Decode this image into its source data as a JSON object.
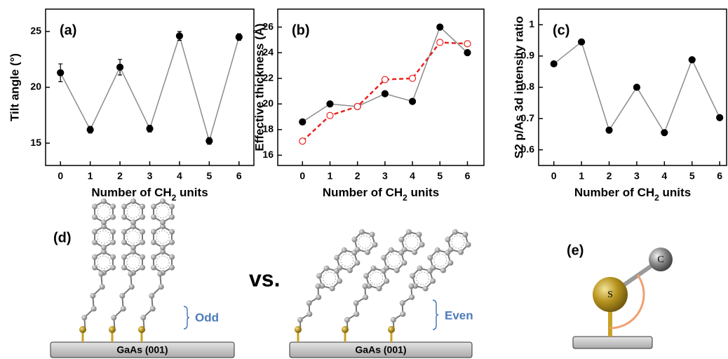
{
  "chart_data": [
    {
      "type": "line",
      "panel_label": "(a)",
      "xlabel": [
        "Number of CH",
        "2",
        " units"
      ],
      "ylabel": "Tilt angle (°)",
      "x": [
        0,
        1,
        2,
        3,
        4,
        5,
        6
      ],
      "xlim": [
        -0.5,
        6.5
      ],
      "xticks": [
        0,
        1,
        2,
        3,
        4,
        5,
        6
      ],
      "ylim": [
        13,
        27
      ],
      "yticks": [
        15,
        20,
        25
      ],
      "series": [
        {
          "color": "#000000",
          "line_color": "#8c8c8c",
          "marker": "filled",
          "linestyle": "solid",
          "values": [
            21.3,
            16.2,
            21.8,
            16.3,
            24.6,
            15.2,
            24.5
          ],
          "errors": [
            0.8,
            0.3,
            0.7,
            0.3,
            0.4,
            0.3,
            0.3
          ]
        }
      ]
    },
    {
      "type": "line",
      "panel_label": "(b)",
      "xlabel": [
        "Number of CH",
        "2",
        " units"
      ],
      "ylabel": "Effective thickness (Å)",
      "x": [
        0,
        1,
        2,
        3,
        4,
        5,
        6
      ],
      "xlim": [
        -0.9,
        6.6
      ],
      "xticks": [
        0,
        1,
        2,
        3,
        4,
        5,
        6
      ],
      "ylim": [
        15.2,
        27.4
      ],
      "yticks": [
        16,
        18,
        20,
        22,
        24,
        26
      ],
      "series": [
        {
          "color": "#000000",
          "line_color": "#8c8c8c",
          "marker": "filled",
          "linestyle": "solid",
          "values": [
            18.6,
            20.0,
            19.8,
            20.8,
            20.2,
            26.0,
            24.0
          ]
        },
        {
          "color": "#e8231f",
          "line_color": "#e8231f",
          "marker": "open",
          "linestyle": "dashed",
          "values": [
            17.1,
            19.1,
            19.8,
            21.9,
            22.0,
            24.8,
            24.7
          ]
        }
      ]
    },
    {
      "type": "line",
      "panel_label": "(c)",
      "xlabel": [
        "Number of CH",
        "2",
        " units"
      ],
      "ylabel": "S2 p/As 3d intensity ratio",
      "x": [
        0,
        1,
        2,
        3,
        4,
        5,
        6
      ],
      "xlim": [
        -0.55,
        6.25
      ],
      "xticks": [
        0,
        1,
        2,
        3,
        4,
        5,
        6
      ],
      "ylim": [
        0.55,
        1.05
      ],
      "yticks": [
        0.6,
        0.7,
        0.8,
        0.9,
        1
      ],
      "series": [
        {
          "color": "#000000",
          "line_color": "#8c8c8c",
          "marker": "filled",
          "linestyle": "solid",
          "values": [
            0.875,
            0.945,
            0.663,
            0.8,
            0.655,
            0.888,
            0.703
          ]
        }
      ]
    }
  ],
  "diagram": {
    "d": {
      "label": "(d)",
      "vs": "vs.",
      "odd": "Odd",
      "even": "Even",
      "substrates": [
        "GaAs (001)",
        "GaAs (001)"
      ]
    },
    "e": {
      "label": "(e)",
      "sulfur": "S",
      "carbon": "C"
    }
  }
}
